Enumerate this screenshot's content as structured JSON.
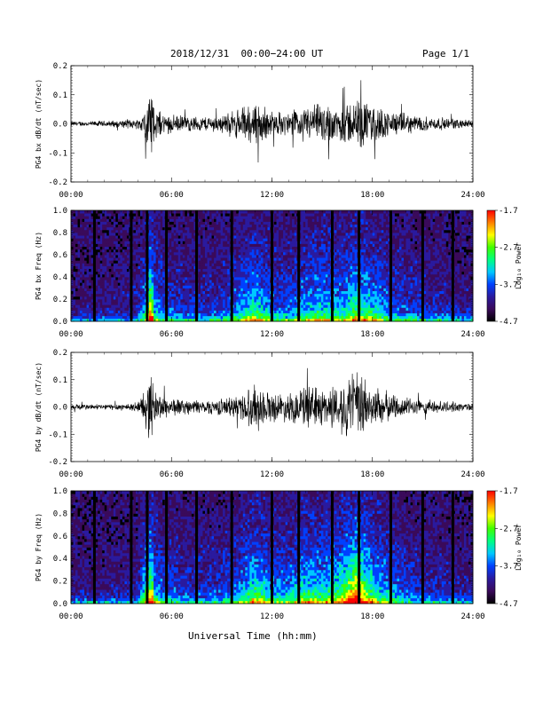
{
  "header": {
    "title": "2018/12/31  00:00−24:00 UT",
    "page": "Page 1/1"
  },
  "footer": {
    "xlabel": "Universal Time (hh:mm)"
  },
  "colors": {
    "trace": "#000000",
    "frame": "#000000",
    "colorscale": [
      "#000000",
      "#3a0a5a",
      "#2a1a9e",
      "#0040ff",
      "#00c8ff",
      "#00ff80",
      "#40ff00",
      "#ffff00",
      "#ff8000",
      "#ff0000"
    ]
  },
  "chart_data": [
    {
      "type": "line",
      "ylabel": "PG4 bx dB/dt (nT/sec)",
      "xlim": [
        0,
        24
      ],
      "ylim": [
        -0.2,
        0.2
      ],
      "yticks": [
        "0.2",
        "0.1",
        "0.0",
        "-0.1",
        "-0.2"
      ],
      "xticks": [
        "00:00",
        "06:00",
        "12:00",
        "18:00",
        "24:00"
      ],
      "envelope_hours": [
        0,
        1,
        2,
        3,
        4,
        4.5,
        4.8,
        5,
        5.5,
        6,
        7,
        8,
        9,
        10,
        11,
        12,
        13,
        14,
        15,
        16,
        17,
        18,
        19,
        20,
        21,
        22,
        23,
        24
      ],
      "envelope_amp": [
        0.01,
        0.01,
        0.012,
        0.015,
        0.02,
        0.08,
        0.17,
        0.06,
        0.04,
        0.035,
        0.03,
        0.03,
        0.035,
        0.06,
        0.09,
        0.05,
        0.045,
        0.07,
        0.08,
        0.07,
        0.1,
        0.08,
        0.05,
        0.04,
        0.03,
        0.025,
        0.02,
        0.015
      ]
    },
    {
      "type": "heatmap",
      "ylabel": "PG4 bx Freq (Hz)",
      "xlim": [
        0,
        24
      ],
      "ylim": [
        0,
        1
      ],
      "yticks": [
        "1.0",
        "0.8",
        "0.6",
        "0.4",
        "0.2",
        "0.0"
      ],
      "xticks": [
        "00:00",
        "06:00",
        "12:00",
        "18:00",
        "24:00"
      ],
      "colorbar": {
        "label": "Log₁₀ Power",
        "ticks": [
          "-1.7",
          "-2.7",
          "-3.7",
          "-4.7"
        ],
        "range": [
          -4.7,
          -1.7
        ]
      },
      "gap_hours": [
        1.4,
        3.6,
        4.55,
        5.7,
        7.5,
        9.6,
        12.0,
        13.6,
        15.6,
        17.2,
        19.1,
        21.0,
        22.8
      ]
    },
    {
      "type": "line",
      "ylabel": "PG4 by dB/dt (nT/sec)",
      "xlim": [
        0,
        24
      ],
      "ylim": [
        -0.2,
        0.2
      ],
      "yticks": [
        "0.2",
        "0.1",
        "0.0",
        "-0.1",
        "-0.2"
      ],
      "xticks": [
        "00:00",
        "06:00",
        "12:00",
        "18:00",
        "24:00"
      ],
      "envelope_hours": [
        0,
        1,
        2,
        3,
        4,
        4.5,
        4.8,
        5,
        5.5,
        6,
        7,
        8,
        9,
        10,
        11,
        12,
        13,
        14,
        15,
        16,
        17,
        18,
        19,
        20,
        21,
        22,
        23,
        24
      ],
      "envelope_amp": [
        0.012,
        0.012,
        0.012,
        0.015,
        0.02,
        0.1,
        0.15,
        0.07,
        0.05,
        0.04,
        0.03,
        0.03,
        0.035,
        0.05,
        0.1,
        0.06,
        0.06,
        0.09,
        0.08,
        0.1,
        0.16,
        0.09,
        0.06,
        0.04,
        0.03,
        0.025,
        0.02,
        0.015
      ]
    },
    {
      "type": "heatmap",
      "ylabel": "PG4 by Freq (Hz)",
      "xlim": [
        0,
        24
      ],
      "ylim": [
        0,
        1
      ],
      "yticks": [
        "1.0",
        "0.8",
        "0.6",
        "0.4",
        "0.2",
        "0.0"
      ],
      "xticks": [
        "00:00",
        "06:00",
        "12:00",
        "18:00",
        "24:00"
      ],
      "colorbar": {
        "label": "Log₁₀ Power",
        "ticks": [
          "-1.7",
          "-2.7",
          "-3.7",
          "-4.7"
        ],
        "range": [
          -4.7,
          -1.7
        ]
      },
      "gap_hours": [
        1.4,
        3.6,
        4.55,
        5.7,
        7.5,
        9.6,
        12.0,
        13.6,
        15.6,
        17.2,
        19.1,
        21.0,
        22.8
      ]
    }
  ]
}
